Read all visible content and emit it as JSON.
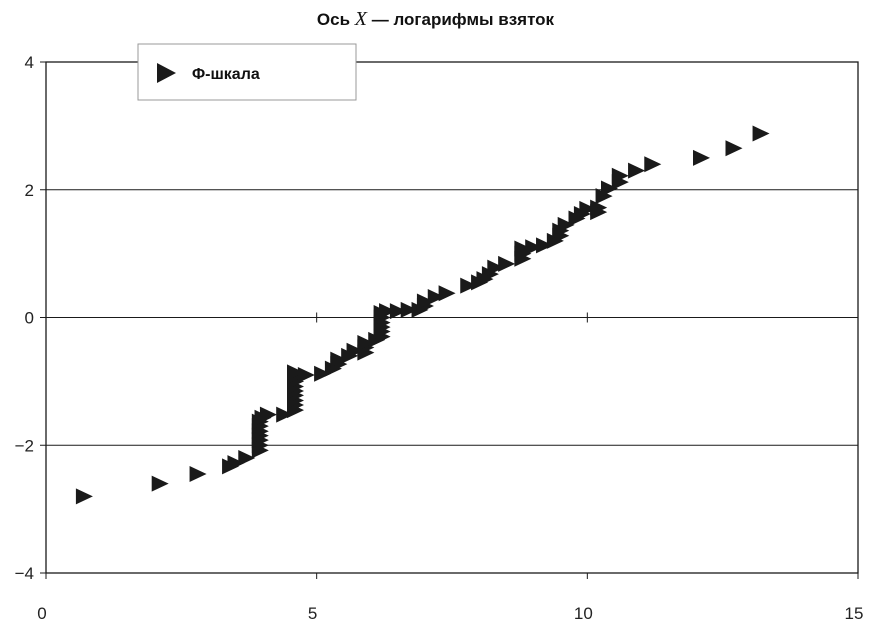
{
  "title": {
    "prefix": "Ось",
    "variable": "X",
    "suffix": "— логарифмы взяток"
  },
  "chart_data": {
    "type": "scatter",
    "title": "Ось X — логарифмы взяток",
    "xlim": [
      0,
      15
    ],
    "ylim": [
      -4,
      4
    ],
    "x_ticks": [
      0,
      5,
      10,
      15
    ],
    "y_ticks": [
      4,
      2,
      0,
      -2,
      -4
    ],
    "x_tick_labels": [
      "0",
      "5",
      "10",
      "15"
    ],
    "y_tick_labels": [
      "4",
      "2",
      "0",
      "−2",
      "−4"
    ],
    "grid": "horizontal",
    "legend_position": "top-left",
    "marker": "right-triangle",
    "marker_color": "#1a1a1a",
    "series": [
      {
        "name": "Φ-шкала",
        "points": [
          [
            0.7,
            -2.8
          ],
          [
            2.1,
            -2.6
          ],
          [
            2.8,
            -2.45
          ],
          [
            3.4,
            -2.33
          ],
          [
            3.5,
            -2.28
          ],
          [
            3.7,
            -2.2
          ],
          [
            3.95,
            -2.08
          ],
          [
            3.95,
            -2.0
          ],
          [
            3.95,
            -1.92
          ],
          [
            3.95,
            -1.85
          ],
          [
            3.95,
            -1.78
          ],
          [
            3.95,
            -1.7
          ],
          [
            3.95,
            -1.63
          ],
          [
            4.0,
            -1.57
          ],
          [
            4.1,
            -1.52
          ],
          [
            4.4,
            -1.52
          ],
          [
            4.6,
            -1.45
          ],
          [
            4.6,
            -1.37
          ],
          [
            4.6,
            -1.3
          ],
          [
            4.6,
            -1.22
          ],
          [
            4.6,
            -1.15
          ],
          [
            4.6,
            -1.08
          ],
          [
            4.6,
            -1.0
          ],
          [
            4.6,
            -0.92
          ],
          [
            4.6,
            -0.86
          ],
          [
            4.8,
            -0.9
          ],
          [
            5.1,
            -0.88
          ],
          [
            5.3,
            -0.8
          ],
          [
            5.4,
            -0.73
          ],
          [
            5.4,
            -0.66
          ],
          [
            5.6,
            -0.6
          ],
          [
            5.7,
            -0.52
          ],
          [
            5.9,
            -0.55
          ],
          [
            5.9,
            -0.47
          ],
          [
            5.9,
            -0.4
          ],
          [
            6.1,
            -0.35
          ],
          [
            6.2,
            -0.3
          ],
          [
            6.2,
            -0.22
          ],
          [
            6.2,
            -0.15
          ],
          [
            6.2,
            -0.08
          ],
          [
            6.2,
            0.0
          ],
          [
            6.2,
            0.07
          ],
          [
            6.3,
            0.1
          ],
          [
            6.5,
            0.1
          ],
          [
            6.7,
            0.12
          ],
          [
            6.9,
            0.12
          ],
          [
            7.0,
            0.18
          ],
          [
            7.0,
            0.25
          ],
          [
            7.2,
            0.32
          ],
          [
            7.4,
            0.38
          ],
          [
            7.8,
            0.5
          ],
          [
            8.0,
            0.55
          ],
          [
            8.1,
            0.6
          ],
          [
            8.2,
            0.68
          ],
          [
            8.3,
            0.78
          ],
          [
            8.5,
            0.84
          ],
          [
            8.8,
            0.92
          ],
          [
            8.8,
            1.0
          ],
          [
            8.8,
            1.08
          ],
          [
            9.0,
            1.1
          ],
          [
            9.2,
            1.13
          ],
          [
            9.4,
            1.2
          ],
          [
            9.5,
            1.28
          ],
          [
            9.5,
            1.36
          ],
          [
            9.6,
            1.45
          ],
          [
            9.8,
            1.55
          ],
          [
            9.9,
            1.62
          ],
          [
            10.0,
            1.7
          ],
          [
            10.2,
            1.72
          ],
          [
            10.2,
            1.65
          ],
          [
            10.3,
            1.9
          ],
          [
            10.4,
            2.02
          ],
          [
            10.6,
            2.12
          ],
          [
            10.6,
            2.22
          ],
          [
            10.9,
            2.3
          ],
          [
            11.2,
            2.4
          ],
          [
            12.1,
            2.5
          ],
          [
            12.7,
            2.65
          ],
          [
            13.2,
            2.88
          ]
        ]
      }
    ]
  }
}
